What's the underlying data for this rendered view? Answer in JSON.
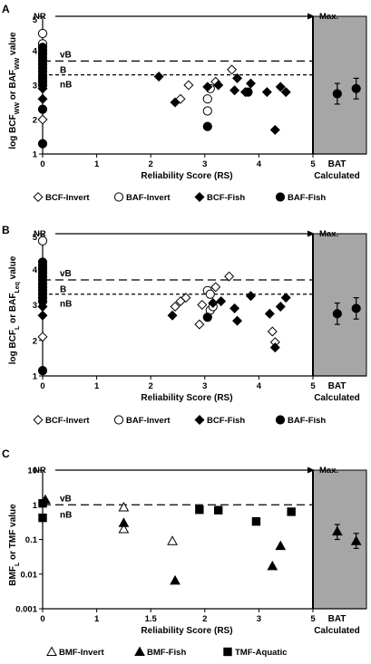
{
  "chart_data": [
    {
      "type": "scatter",
      "panel_label": "A",
      "scale": "linear",
      "ylabel_parts": [
        [
          "log BCF",
          ""
        ],
        [
          "WW",
          "sub"
        ],
        [
          " or BAF",
          ""
        ],
        [
          "WW",
          "sub"
        ],
        [
          " value",
          ""
        ]
      ],
      "xlabel": "Reliability Score (RS)",
      "xlim": [
        0,
        6
      ],
      "ylim": [
        1,
        5
      ],
      "xticks": [
        0,
        1,
        2,
        3,
        4,
        5
      ],
      "yticks": [
        1,
        2,
        3,
        4,
        5
      ],
      "arrow_start_label": "NR",
      "arrow_end_label": "Max.",
      "bat_label_1": "BAT",
      "bat_label_2": "Calculated",
      "thresholds": [
        {
          "value": 3.7,
          "style": "long-dash",
          "above_label": "vB",
          "label": ""
        },
        {
          "value": 3.3,
          "style": "short-dash",
          "above_label": "B",
          "label": "nB"
        }
      ],
      "legend": [
        {
          "name": "BCF-Invert",
          "marker": "diamond",
          "fill": "open"
        },
        {
          "name": "BAF-Invert",
          "marker": "circle",
          "fill": "open"
        },
        {
          "name": "BCF-Fish",
          "marker": "diamond",
          "fill": "filled"
        },
        {
          "name": "BAF-Fish",
          "marker": "circle",
          "fill": "filled"
        }
      ],
      "series": [
        {
          "name": "BCF-Invert",
          "marker": "diamond",
          "fill": "open",
          "points": [
            [
              0,
              2.0
            ],
            [
              2.55,
              2.6
            ],
            [
              2.7,
              3.0
            ],
            [
              3.2,
              3.1
            ],
            [
              3.5,
              3.45
            ]
          ]
        },
        {
          "name": "BAF-Invert",
          "marker": "circle",
          "fill": "open",
          "points": [
            [
              0,
              4.5
            ],
            [
              0,
              4.2
            ],
            [
              3.05,
              2.6
            ],
            [
              3.05,
              2.25
            ],
            [
              3.1,
              2.9
            ]
          ]
        },
        {
          "name": "BCF-Fish",
          "marker": "diamond",
          "fill": "filled",
          "points": [
            [
              0,
              2.6
            ],
            [
              0,
              2.9
            ],
            [
              2.15,
              3.25
            ],
            [
              2.45,
              2.5
            ],
            [
              3.05,
              2.95
            ],
            [
              3.25,
              3.0
            ],
            [
              3.55,
              2.85
            ],
            [
              3.6,
              3.2
            ],
            [
              3.75,
              2.8
            ],
            [
              3.85,
              3.05
            ],
            [
              4.15,
              2.8
            ],
            [
              4.3,
              1.7
            ],
            [
              4.4,
              2.95
            ],
            [
              4.5,
              2.8
            ]
          ]
        },
        {
          "name": "BAF-Fish",
          "marker": "circle",
          "fill": "filled",
          "points": [
            [
              0,
              4.1
            ],
            [
              0,
              4.0
            ],
            [
              0,
              3.9
            ],
            [
              0,
              3.8
            ],
            [
              0,
              3.7
            ],
            [
              0,
              3.6
            ],
            [
              0,
              3.5
            ],
            [
              0,
              3.4
            ],
            [
              0,
              3.3
            ],
            [
              0,
              3.2
            ],
            [
              0,
              3.1
            ],
            [
              0,
              3.0
            ],
            [
              0,
              2.3
            ],
            [
              0,
              1.3
            ],
            [
              3.05,
              1.8
            ],
            [
              3.8,
              2.8
            ]
          ]
        }
      ],
      "bat_points": [
        {
          "x": 5.45,
          "y": 2.75,
          "yerr": 0.3
        },
        {
          "x": 5.8,
          "y": 2.9,
          "yerr": 0.3
        }
      ]
    },
    {
      "type": "scatter",
      "panel_label": "B",
      "scale": "linear",
      "ylabel_parts": [
        [
          "log BCF",
          ""
        ],
        [
          "L",
          "sub"
        ],
        [
          " or BAF",
          ""
        ],
        [
          "Leq",
          "sub"
        ],
        [
          " value",
          ""
        ]
      ],
      "xlabel": "Reliability Score (RS)",
      "xlim": [
        0,
        6
      ],
      "ylim": [
        1,
        5
      ],
      "xticks": [
        0,
        1,
        2,
        3,
        4,
        5
      ],
      "yticks": [
        1,
        2,
        3,
        4,
        5
      ],
      "arrow_start_label": "NR",
      "arrow_end_label": "Max.",
      "bat_label_1": "BAT",
      "bat_label_2": "Calculated",
      "thresholds": [
        {
          "value": 3.7,
          "style": "long-dash",
          "above_label": "vB",
          "label": ""
        },
        {
          "value": 3.3,
          "style": "short-dash",
          "above_label": "B",
          "label": "nB"
        }
      ],
      "legend": [
        {
          "name": "BCF-Invert",
          "marker": "diamond",
          "fill": "open"
        },
        {
          "name": "BAF-Invert",
          "marker": "circle",
          "fill": "open"
        },
        {
          "name": "BCF-Fish",
          "marker": "diamond",
          "fill": "filled"
        },
        {
          "name": "BAF-Fish",
          "marker": "circle",
          "fill": "filled"
        }
      ],
      "series": [
        {
          "name": "BCF-Invert",
          "marker": "diamond",
          "fill": "open",
          "points": [
            [
              0,
              2.1
            ],
            [
              2.45,
              2.95
            ],
            [
              2.55,
              3.1
            ],
            [
              2.65,
              3.2
            ],
            [
              2.9,
              2.45
            ],
            [
              2.95,
              3.0
            ],
            [
              3.2,
              3.5
            ],
            [
              3.45,
              3.8
            ],
            [
              4.25,
              2.25
            ],
            [
              4.3,
              1.95
            ]
          ]
        },
        {
          "name": "BAF-Invert",
          "marker": "circle",
          "fill": "open",
          "points": [
            [
              0,
              4.8
            ],
            [
              3.05,
              3.4
            ],
            [
              3.1,
              3.3
            ],
            [
              3.1,
              2.85
            ],
            [
              3.15,
              2.95
            ]
          ]
        },
        {
          "name": "BCF-Fish",
          "marker": "diamond",
          "fill": "filled",
          "points": [
            [
              0,
              2.7
            ],
            [
              0,
              2.95
            ],
            [
              2.4,
              2.7
            ],
            [
              3.15,
              3.05
            ],
            [
              3.3,
              3.1
            ],
            [
              3.55,
              2.9
            ],
            [
              3.6,
              2.55
            ],
            [
              3.85,
              3.25
            ],
            [
              4.2,
              2.75
            ],
            [
              4.3,
              1.8
            ],
            [
              4.4,
              2.95
            ],
            [
              4.5,
              3.2
            ]
          ]
        },
        {
          "name": "BAF-Fish",
          "marker": "circle",
          "fill": "filled",
          "points": [
            [
              0,
              4.2
            ],
            [
              0,
              4.1
            ],
            [
              0,
              4.0
            ],
            [
              0,
              3.9
            ],
            [
              0,
              3.8
            ],
            [
              0,
              3.7
            ],
            [
              0,
              3.6
            ],
            [
              0,
              3.5
            ],
            [
              0,
              3.4
            ],
            [
              0,
              3.3
            ],
            [
              0,
              3.2
            ],
            [
              0,
              3.1
            ],
            [
              0,
              1.15
            ],
            [
              3.05,
              2.65
            ]
          ]
        }
      ],
      "bat_points": [
        {
          "x": 5.45,
          "y": 2.75,
          "yerr": 0.3
        },
        {
          "x": 5.8,
          "y": 2.9,
          "yerr": 0.3
        }
      ]
    },
    {
      "type": "scatter",
      "panel_label": "C",
      "scale": "log",
      "ylabel_parts": [
        [
          "BMF",
          ""
        ],
        [
          "L",
          "sub"
        ],
        [
          " or TMF value",
          ""
        ]
      ],
      "xlabel": "Reliability Score (RS)",
      "xlim": [
        0,
        6
      ],
      "ylim": [
        0.001,
        10
      ],
      "xticks": [
        0,
        1,
        2,
        3,
        4,
        5
      ],
      "xtick_labels": [
        "0",
        "1",
        "1.5",
        "2",
        "3",
        "5"
      ],
      "yticks": [
        0.001,
        0.01,
        0.1,
        1,
        10
      ],
      "ytick_labels": [
        "0.001",
        "0.01",
        "0.1",
        "1",
        "10"
      ],
      "arrow_start_label": "NR",
      "arrow_end_label": "Max.",
      "bat_label_1": "BAT",
      "bat_label_2": "Calculated",
      "thresholds": [
        {
          "value": 1,
          "style": "long-dash",
          "above_label": "vB",
          "label": "nB"
        }
      ],
      "legend": [
        {
          "name": "BMF-Invert",
          "marker": "triangle",
          "fill": "open"
        },
        {
          "name": "BMF-Fish",
          "marker": "triangle",
          "fill": "filled"
        },
        {
          "name": "TMF-Aquatic",
          "marker": "square",
          "fill": "filled"
        }
      ],
      "series": [
        {
          "name": "BMF-Invert",
          "marker": "triangle",
          "fill": "open",
          "points": [
            [
              1.5,
              0.85
            ],
            [
              1.5,
              0.2
            ],
            [
              2.4,
              0.09
            ]
          ]
        },
        {
          "name": "BMF-Fish",
          "marker": "triangle",
          "fill": "filled",
          "points": [
            [
              0.05,
              1.4
            ],
            [
              1.5,
              0.3
            ],
            [
              2.45,
              0.0065
            ],
            [
              4.25,
              0.017
            ],
            [
              4.4,
              0.065
            ]
          ]
        },
        {
          "name": "TMF-Aquatic",
          "marker": "square",
          "fill": "filled",
          "points": [
            [
              0,
              1.1
            ],
            [
              0,
              0.42
            ],
            [
              2.9,
              0.72
            ],
            [
              3.25,
              0.7
            ],
            [
              3.95,
              0.33
            ],
            [
              4.6,
              0.63
            ]
          ]
        }
      ],
      "bat_points": [
        {
          "x": 5.45,
          "y": 0.17,
          "yerr_low": 0.1,
          "yerr_high": 0.27
        },
        {
          "x": 5.8,
          "y": 0.09,
          "yerr_low": 0.055,
          "yerr_high": 0.15
        }
      ]
    }
  ]
}
